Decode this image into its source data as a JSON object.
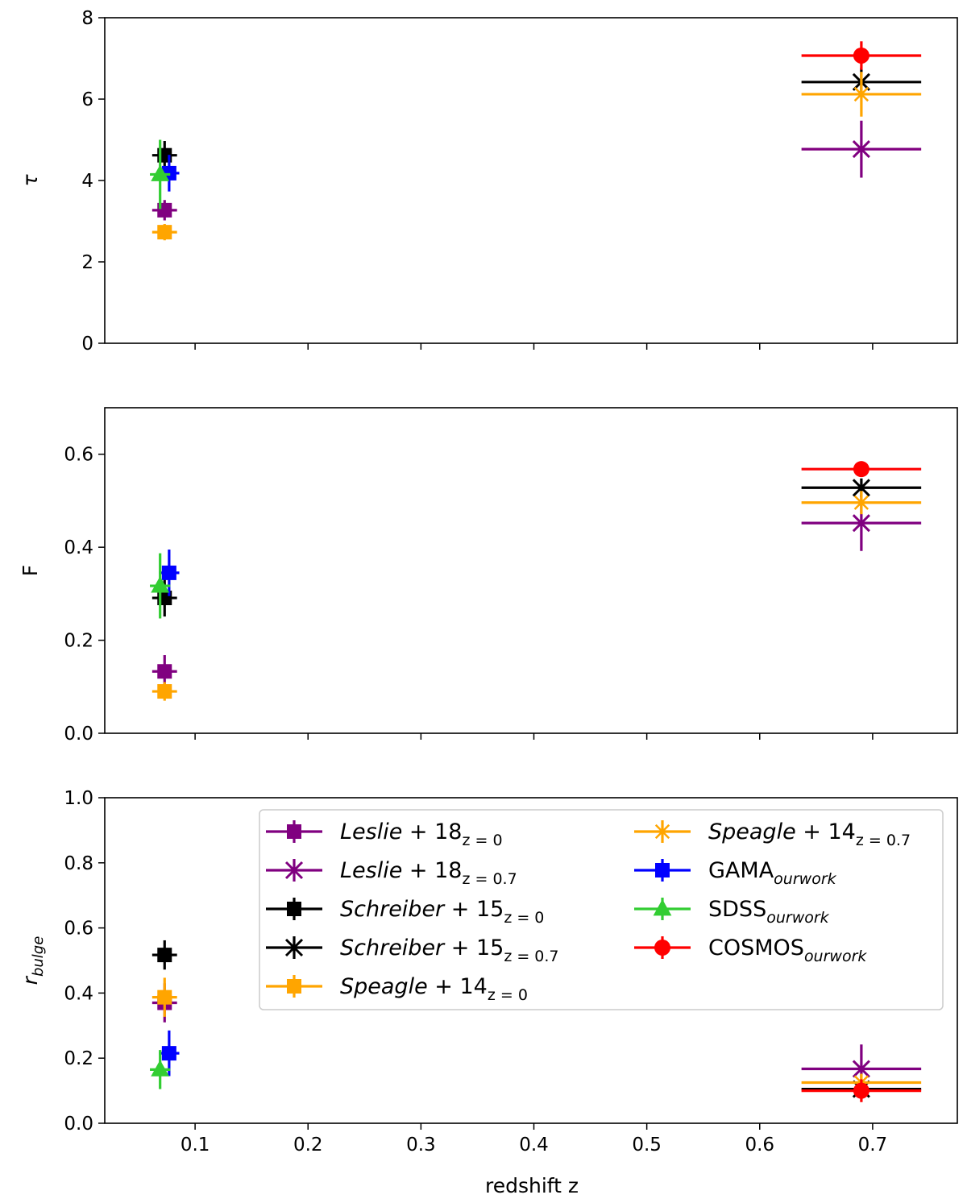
{
  "figure": {
    "shared_xlabel": "redshift z"
  },
  "colors": {
    "leslie": "#800080",
    "schreiber": "#000000",
    "speagle": "#FFA500",
    "gama": "#0000FF",
    "sdss": "#32CD32",
    "cosmos": "#FF0000"
  },
  "chart_data": [
    {
      "type": "scatter",
      "title": "",
      "xlabel": "",
      "ylabel": "τ",
      "xlim": [
        0.02,
        0.775
      ],
      "ylim": [
        0,
        8
      ],
      "xticks": [
        "0.1",
        "0.2",
        "0.3",
        "0.4",
        "0.5",
        "0.6",
        "0.7"
      ],
      "yticks": [
        "0",
        "2",
        "4",
        "6",
        "8"
      ],
      "series": [
        {
          "name": "Leslie+18 z=0",
          "color": "#800080",
          "marker": "square",
          "x": 0.073,
          "y": 3.27,
          "xerr": 0.011,
          "yerr": 0.25
        },
        {
          "name": "Leslie+18 z=0.7",
          "color": "#800080",
          "marker": "x",
          "x": 0.69,
          "y": 4.77,
          "xerr": 0.053,
          "yerr": 0.7
        },
        {
          "name": "Schreiber+15 z=0",
          "color": "#000000",
          "marker": "square",
          "x": 0.073,
          "y": 4.62,
          "xerr": 0.011,
          "yerr": 0.35
        },
        {
          "name": "Schreiber+15 z=0.7",
          "color": "#000000",
          "marker": "x",
          "x": 0.69,
          "y": 6.42,
          "xerr": 0.053,
          "yerr": 0.35
        },
        {
          "name": "Speagle+14 z=0",
          "color": "#FFA500",
          "marker": "square",
          "x": 0.073,
          "y": 2.73,
          "xerr": 0.011,
          "yerr": 0.2
        },
        {
          "name": "Speagle+14 z=0.7",
          "color": "#FFA500",
          "marker": "star",
          "x": 0.69,
          "y": 6.12,
          "xerr": 0.053,
          "yerr": 0.55
        },
        {
          "name": "GAMA our work",
          "color": "#0000FF",
          "marker": "square",
          "x": 0.077,
          "y": 4.18,
          "xerr": 0.009,
          "yerr": 0.45
        },
        {
          "name": "SDSS our work",
          "color": "#32CD32",
          "marker": "triangle",
          "x": 0.069,
          "y": 4.15,
          "xerr": 0.009,
          "yerr": 0.85
        },
        {
          "name": "COSMOS our work",
          "color": "#FF0000",
          "marker": "circle",
          "x": 0.69,
          "y": 7.07,
          "xerr": 0.053,
          "yerr": 0.35
        }
      ]
    },
    {
      "type": "scatter",
      "title": "",
      "xlabel": "",
      "ylabel": "F",
      "xlim": [
        0.02,
        0.775
      ],
      "ylim": [
        0,
        0.7
      ],
      "xticks": [
        "0.1",
        "0.2",
        "0.3",
        "0.4",
        "0.5",
        "0.6",
        "0.7"
      ],
      "yticks": [
        "0.0",
        "0.2",
        "0.4",
        "0.6"
      ],
      "series": [
        {
          "name": "Leslie+18 z=0",
          "color": "#800080",
          "marker": "square",
          "x": 0.073,
          "y": 0.133,
          "xerr": 0.011,
          "yerr": 0.035
        },
        {
          "name": "Leslie+18 z=0.7",
          "color": "#800080",
          "marker": "x",
          "x": 0.69,
          "y": 0.452,
          "xerr": 0.053,
          "yerr": 0.06
        },
        {
          "name": "Schreiber+15 z=0",
          "color": "#000000",
          "marker": "square",
          "x": 0.073,
          "y": 0.291,
          "xerr": 0.011,
          "yerr": 0.04
        },
        {
          "name": "Schreiber+15 z=0.7",
          "color": "#000000",
          "marker": "x",
          "x": 0.69,
          "y": 0.528,
          "xerr": 0.053,
          "yerr": 0.02
        },
        {
          "name": "Speagle+14 z=0",
          "color": "#FFA500",
          "marker": "square",
          "x": 0.073,
          "y": 0.09,
          "xerr": 0.011,
          "yerr": 0.02
        },
        {
          "name": "Speagle+14 z=0.7",
          "color": "#FFA500",
          "marker": "star",
          "x": 0.69,
          "y": 0.496,
          "xerr": 0.053,
          "yerr": 0.025
        },
        {
          "name": "GAMA our work",
          "color": "#0000FF",
          "marker": "square",
          "x": 0.077,
          "y": 0.345,
          "xerr": 0.009,
          "yerr": 0.05
        },
        {
          "name": "SDSS our work",
          "color": "#32CD32",
          "marker": "triangle",
          "x": 0.069,
          "y": 0.317,
          "xerr": 0.009,
          "yerr": 0.07
        },
        {
          "name": "COSMOS our work",
          "color": "#FF0000",
          "marker": "circle",
          "x": 0.69,
          "y": 0.568,
          "xerr": 0.053,
          "yerr": 0.015
        }
      ]
    },
    {
      "type": "scatter",
      "title": "",
      "xlabel": "redshift z",
      "ylabel": "r_bulge",
      "xlim": [
        0.02,
        0.775
      ],
      "ylim": [
        0,
        1.0
      ],
      "xticks": [
        "0.1",
        "0.2",
        "0.3",
        "0.4",
        "0.5",
        "0.6",
        "0.7"
      ],
      "yticks": [
        "0.0",
        "0.2",
        "0.4",
        "0.6",
        "0.8",
        "1.0"
      ],
      "series": [
        {
          "name": "Leslie+18 z=0",
          "color": "#800080",
          "marker": "square",
          "x": 0.073,
          "y": 0.37,
          "xerr": 0.011,
          "yerr": 0.06
        },
        {
          "name": "Leslie+18 z=0.7",
          "color": "#800080",
          "marker": "x",
          "x": 0.69,
          "y": 0.167,
          "xerr": 0.053,
          "yerr": 0.075
        },
        {
          "name": "Schreiber+15 z=0",
          "color": "#000000",
          "marker": "square",
          "x": 0.073,
          "y": 0.517,
          "xerr": 0.011,
          "yerr": 0.045
        },
        {
          "name": "Schreiber+15 z=0.7",
          "color": "#000000",
          "marker": "x",
          "x": 0.69,
          "y": 0.105,
          "xerr": 0.053,
          "yerr": 0.02
        },
        {
          "name": "Speagle+14 z=0",
          "color": "#FFA500",
          "marker": "square",
          "x": 0.073,
          "y": 0.387,
          "xerr": 0.011,
          "yerr": 0.06
        },
        {
          "name": "Speagle+14 z=0.7",
          "color": "#FFA500",
          "marker": "star",
          "x": 0.69,
          "y": 0.125,
          "xerr": 0.053,
          "yerr": 0.025
        },
        {
          "name": "GAMA our work",
          "color": "#0000FF",
          "marker": "square",
          "x": 0.077,
          "y": 0.215,
          "xerr": 0.009,
          "yerr": 0.07
        },
        {
          "name": "SDSS our work",
          "color": "#32CD32",
          "marker": "triangle",
          "x": 0.069,
          "y": 0.165,
          "xerr": 0.009,
          "yerr": 0.06
        },
        {
          "name": "COSMOS our work",
          "color": "#FF0000",
          "marker": "circle",
          "x": 0.69,
          "y": 0.1,
          "xerr": 0.053,
          "yerr": 0.035
        }
      ],
      "legend": {
        "location": "upper-right",
        "columns": 2,
        "entries": [
          {
            "name": "Leslie",
            "num": "+ 18",
            "sub": "z = 0",
            "italic": true,
            "color": "#800080",
            "marker": "square"
          },
          {
            "name": "Leslie",
            "num": "+ 18",
            "sub": "z = 0.7",
            "italic": true,
            "color": "#800080",
            "marker": "x"
          },
          {
            "name": "Schreiber",
            "num": "+ 15",
            "sub": "z = 0",
            "italic": true,
            "color": "#000000",
            "marker": "square"
          },
          {
            "name": "Schreiber",
            "num": "+ 15",
            "sub": "z = 0.7",
            "italic": true,
            "color": "#000000",
            "marker": "x"
          },
          {
            "name": "Speagle",
            "num": "+ 14",
            "sub": "z = 0",
            "italic": true,
            "color": "#FFA500",
            "marker": "square"
          },
          {
            "name": "Speagle",
            "num": "+ 14",
            "sub": "z = 0.7",
            "italic": true,
            "color": "#FFA500",
            "marker": "star"
          },
          {
            "name": "GAMA",
            "num": "",
            "sub": "ourwork",
            "italic": false,
            "color": "#0000FF",
            "marker": "square"
          },
          {
            "name": "SDSS",
            "num": "",
            "sub": "ourwork",
            "italic": false,
            "color": "#32CD32",
            "marker": "triangle"
          },
          {
            "name": "COSMOS",
            "num": "",
            "sub": "ourwork",
            "italic": false,
            "color": "#FF0000",
            "marker": "circle"
          }
        ]
      }
    }
  ]
}
